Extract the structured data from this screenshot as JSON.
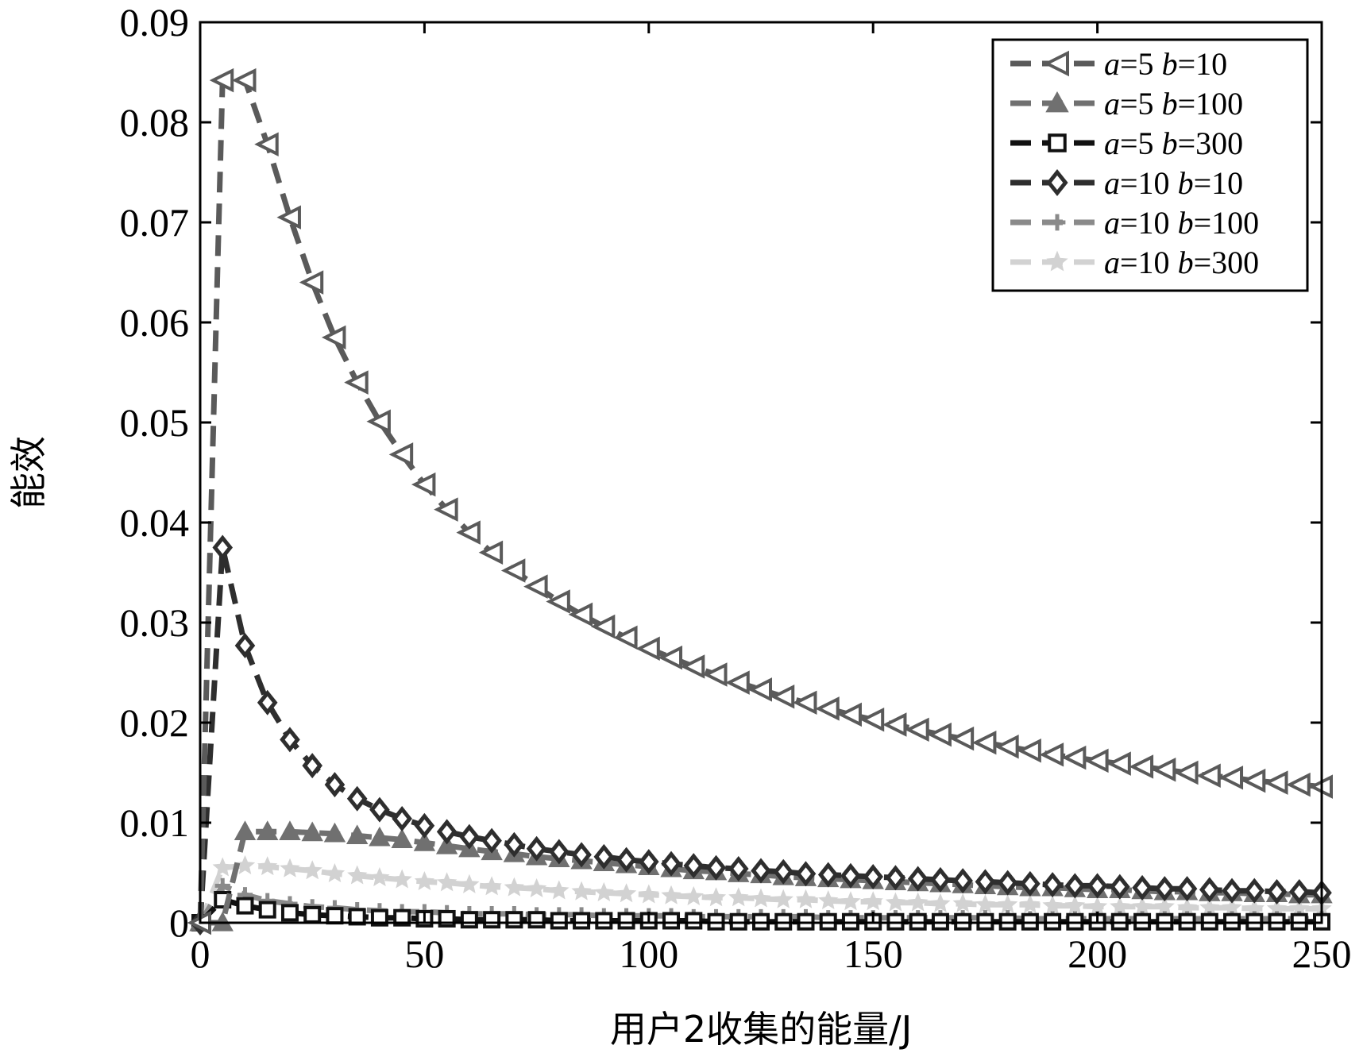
{
  "chart_data": {
    "type": "line",
    "title": "",
    "xlabel": "用户2收集的能量/J",
    "ylabel": "能效",
    "xlim": [
      0,
      250
    ],
    "ylim": [
      0,
      0.09
    ],
    "xticks": [
      0,
      50,
      100,
      150,
      200,
      250
    ],
    "xtick_labels": [
      "0",
      "50",
      "100",
      "150",
      "200",
      "250"
    ],
    "yticks": [
      0,
      0.01,
      0.02,
      0.03,
      0.04,
      0.05,
      0.06,
      0.07,
      0.08,
      0.09
    ],
    "ytick_labels": [
      "0",
      "0.01",
      "0.02",
      "0.03",
      "0.04",
      "0.05",
      "0.06",
      "0.07",
      "0.08",
      "0.09"
    ],
    "grid": false,
    "legend_position": "top-right",
    "x": [
      0,
      5,
      10,
      15,
      20,
      25,
      30,
      35,
      40,
      45,
      50,
      55,
      60,
      65,
      70,
      75,
      80,
      85,
      90,
      95,
      100,
      105,
      110,
      115,
      120,
      125,
      130,
      135,
      140,
      145,
      150,
      155,
      160,
      165,
      170,
      175,
      180,
      185,
      190,
      195,
      200,
      205,
      210,
      215,
      220,
      225,
      230,
      235,
      240,
      245,
      250
    ],
    "series": [
      {
        "name": "a=5 b=10",
        "legend": {
          "a": "5",
          "b": "10"
        },
        "color": "#5a5a5a",
        "marker": "triangle-left",
        "values": [
          0,
          0.0842,
          0.0842,
          0.0778,
          0.0705,
          0.064,
          0.0585,
          0.054,
          0.0501,
          0.0468,
          0.0438,
          0.0413,
          0.039,
          0.037,
          0.0352,
          0.0336,
          0.0321,
          0.0308,
          0.0296,
          0.0285,
          0.0274,
          0.0265,
          0.0256,
          0.0248,
          0.024,
          0.0233,
          0.0226,
          0.022,
          0.0214,
          0.0208,
          0.0203,
          0.0198,
          0.0193,
          0.0188,
          0.0184,
          0.018,
          0.0176,
          0.0172,
          0.0168,
          0.0165,
          0.0162,
          0.0159,
          0.0156,
          0.0153,
          0.015,
          0.0147,
          0.0145,
          0.0142,
          0.014,
          0.0138,
          0.0136
        ]
      },
      {
        "name": "a=5 b=100",
        "legend": {
          "a": "5",
          "b": "100"
        },
        "color": "#707070",
        "marker": "triangle-up",
        "values": [
          0,
          0,
          0.0091,
          0.0091,
          0.0091,
          0.009,
          0.0089,
          0.0087,
          0.0085,
          0.0083,
          0.008,
          0.0077,
          0.0074,
          0.0071,
          0.0069,
          0.0066,
          0.0064,
          0.0062,
          0.006,
          0.0058,
          0.0056,
          0.0054,
          0.0052,
          0.0051,
          0.0049,
          0.0048,
          0.0046,
          0.0045,
          0.0044,
          0.0043,
          0.0042,
          0.0041,
          0.004,
          0.0039,
          0.0038,
          0.0037,
          0.0036,
          0.0035,
          0.0035,
          0.0034,
          0.0033,
          0.0033,
          0.0032,
          0.0031,
          0.0031,
          0.003,
          0.003,
          0.0029,
          0.0029,
          0.0028,
          0.0028
        ]
      },
      {
        "name": "a=5 b=300",
        "legend": {
          "a": "5",
          "b": "300"
        },
        "color": "#111111",
        "marker": "square",
        "values": [
          0,
          0.0023,
          0.0017,
          0.0013,
          0.001,
          0.0008,
          0.0007,
          0.0006,
          0.0005,
          0.0005,
          0.0004,
          0.0004,
          0.0003,
          0.0003,
          0.0003,
          0.0003,
          0.0002,
          0.0002,
          0.0002,
          0.0002,
          0.0002,
          0.0002,
          0.0002,
          0.0001,
          0.0001,
          0.0001,
          0.0001,
          0.0001,
          0.0001,
          0.0001,
          0.0001,
          0.0001,
          0.0001,
          0.0001,
          0.0001,
          0.0001,
          0.0001,
          0.0001,
          0.0001,
          0.0001,
          0.0001,
          0.0001,
          0.0001,
          0.0001,
          0.0001,
          0.0001,
          0.0001,
          0.0001,
          0.0001,
          0.0001,
          0.0001
        ]
      },
      {
        "name": "a=10 b=10",
        "legend": {
          "a": "10",
          "b": "10"
        },
        "color": "#2e2e2e",
        "marker": "diamond",
        "values": [
          0,
          0.0375,
          0.0277,
          0.022,
          0.0183,
          0.0157,
          0.0138,
          0.0124,
          0.0113,
          0.0104,
          0.0097,
          0.0091,
          0.0086,
          0.0082,
          0.0078,
          0.0074,
          0.0071,
          0.0068,
          0.0066,
          0.0063,
          0.0061,
          0.0059,
          0.0057,
          0.0055,
          0.0054,
          0.0052,
          0.0051,
          0.0049,
          0.0048,
          0.0047,
          0.0046,
          0.0045,
          0.0044,
          0.0043,
          0.0042,
          0.0041,
          0.004,
          0.0039,
          0.0038,
          0.0037,
          0.0037,
          0.0036,
          0.0035,
          0.0034,
          0.0034,
          0.0033,
          0.0032,
          0.0032,
          0.0031,
          0.0031,
          0.003
        ]
      },
      {
        "name": "a=10 b=100",
        "legend": {
          "a": "10",
          "b": "100"
        },
        "color": "#8a8a8a",
        "marker": "plus",
        "values": [
          0,
          0.0037,
          0.0028,
          0.0022,
          0.0019,
          0.0016,
          0.0015,
          0.0013,
          0.0012,
          0.0011,
          0.0011,
          0.001,
          0.0009,
          0.0009,
          0.0009,
          0.0008,
          0.0008,
          0.0008,
          0.0007,
          0.0007,
          0.0007,
          0.0007,
          0.0006,
          0.0006,
          0.0006,
          0.0006,
          0.0006,
          0.0006,
          0.0005,
          0.0005,
          0.0005,
          0.0005,
          0.0005,
          0.0005,
          0.0005,
          0.0005,
          0.0005,
          0.0004,
          0.0004,
          0.0004,
          0.0004,
          0.0004,
          0.0004,
          0.0004,
          0.0004,
          0.0004,
          0.0004,
          0.0004,
          0.0004,
          0.0004,
          0.0004
        ]
      },
      {
        "name": "a=10 b=300",
        "legend": {
          "a": "10",
          "b": "300"
        },
        "color": "#d2d2d2",
        "marker": "star",
        "values": [
          0,
          0.0055,
          0.0057,
          0.0056,
          0.0054,
          0.0052,
          0.0049,
          0.0047,
          0.0045,
          0.0043,
          0.0041,
          0.004,
          0.0038,
          0.0036,
          0.0035,
          0.0034,
          0.0032,
          0.0031,
          0.003,
          0.0029,
          0.0028,
          0.0027,
          0.0026,
          0.0025,
          0.0025,
          0.0024,
          0.0023,
          0.0023,
          0.0022,
          0.0021,
          0.0021,
          0.002,
          0.002,
          0.0019,
          0.0019,
          0.0018,
          0.0018,
          0.0018,
          0.0017,
          0.0017,
          0.0016,
          0.0016,
          0.0016,
          0.0016,
          0.0015,
          0.0015,
          0.0015,
          0.0014,
          0.0014,
          0.0014,
          0.0014
        ]
      }
    ]
  }
}
